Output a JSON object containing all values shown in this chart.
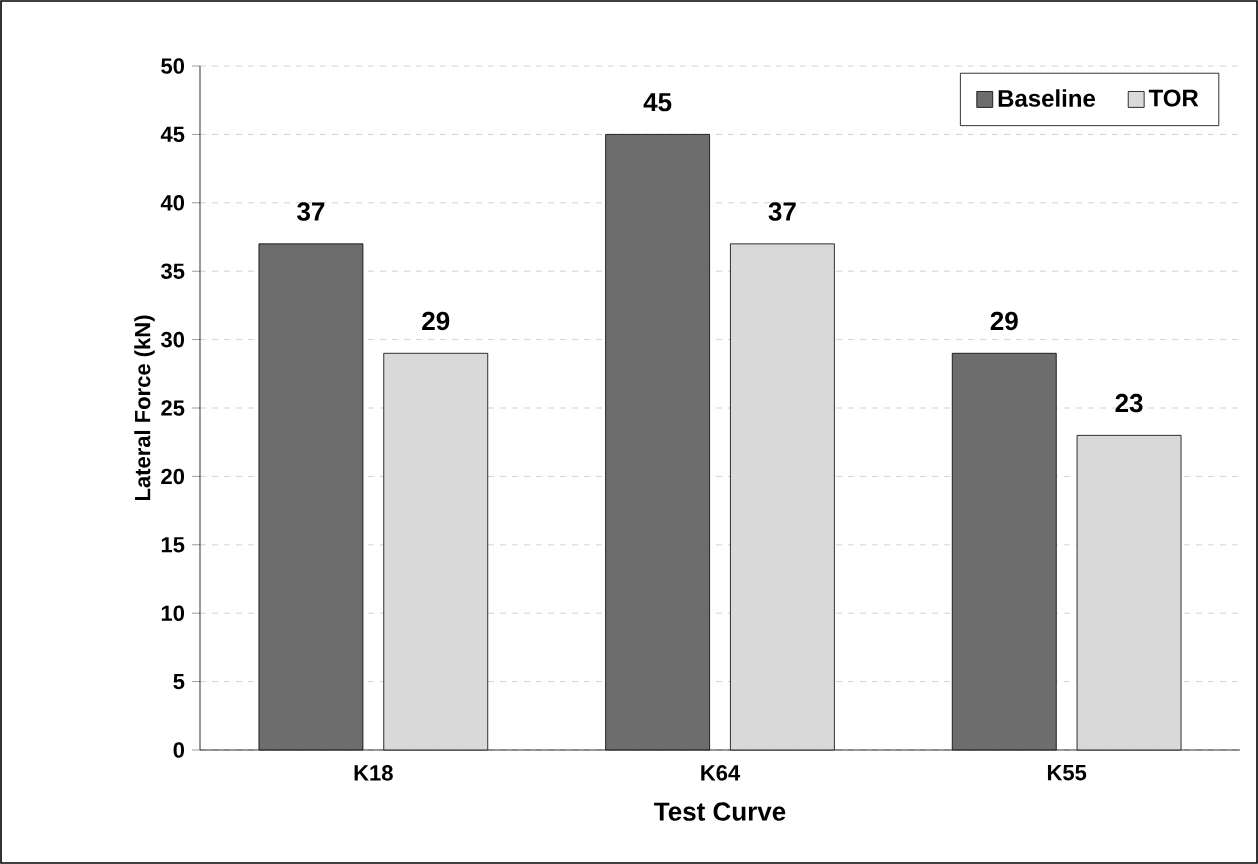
{
  "chart_data": {
    "type": "bar",
    "xlabel": "Test Curve",
    "ylabel": "Lateral Force (kN)",
    "categories": [
      "K18",
      "K64",
      "K55"
    ],
    "series": [
      {
        "name": "Baseline",
        "color": "#6d6d6d",
        "values": [
          37,
          45,
          29
        ]
      },
      {
        "name": "TOR",
        "color": "#d9d9d9",
        "values": [
          29,
          37,
          23
        ]
      }
    ],
    "ylim": [
      0,
      50
    ],
    "yticks": [
      0,
      5,
      10,
      15,
      20,
      25,
      30,
      35,
      40,
      45,
      50
    ],
    "grid": "y",
    "legend": "top right",
    "data_labels": true
  }
}
